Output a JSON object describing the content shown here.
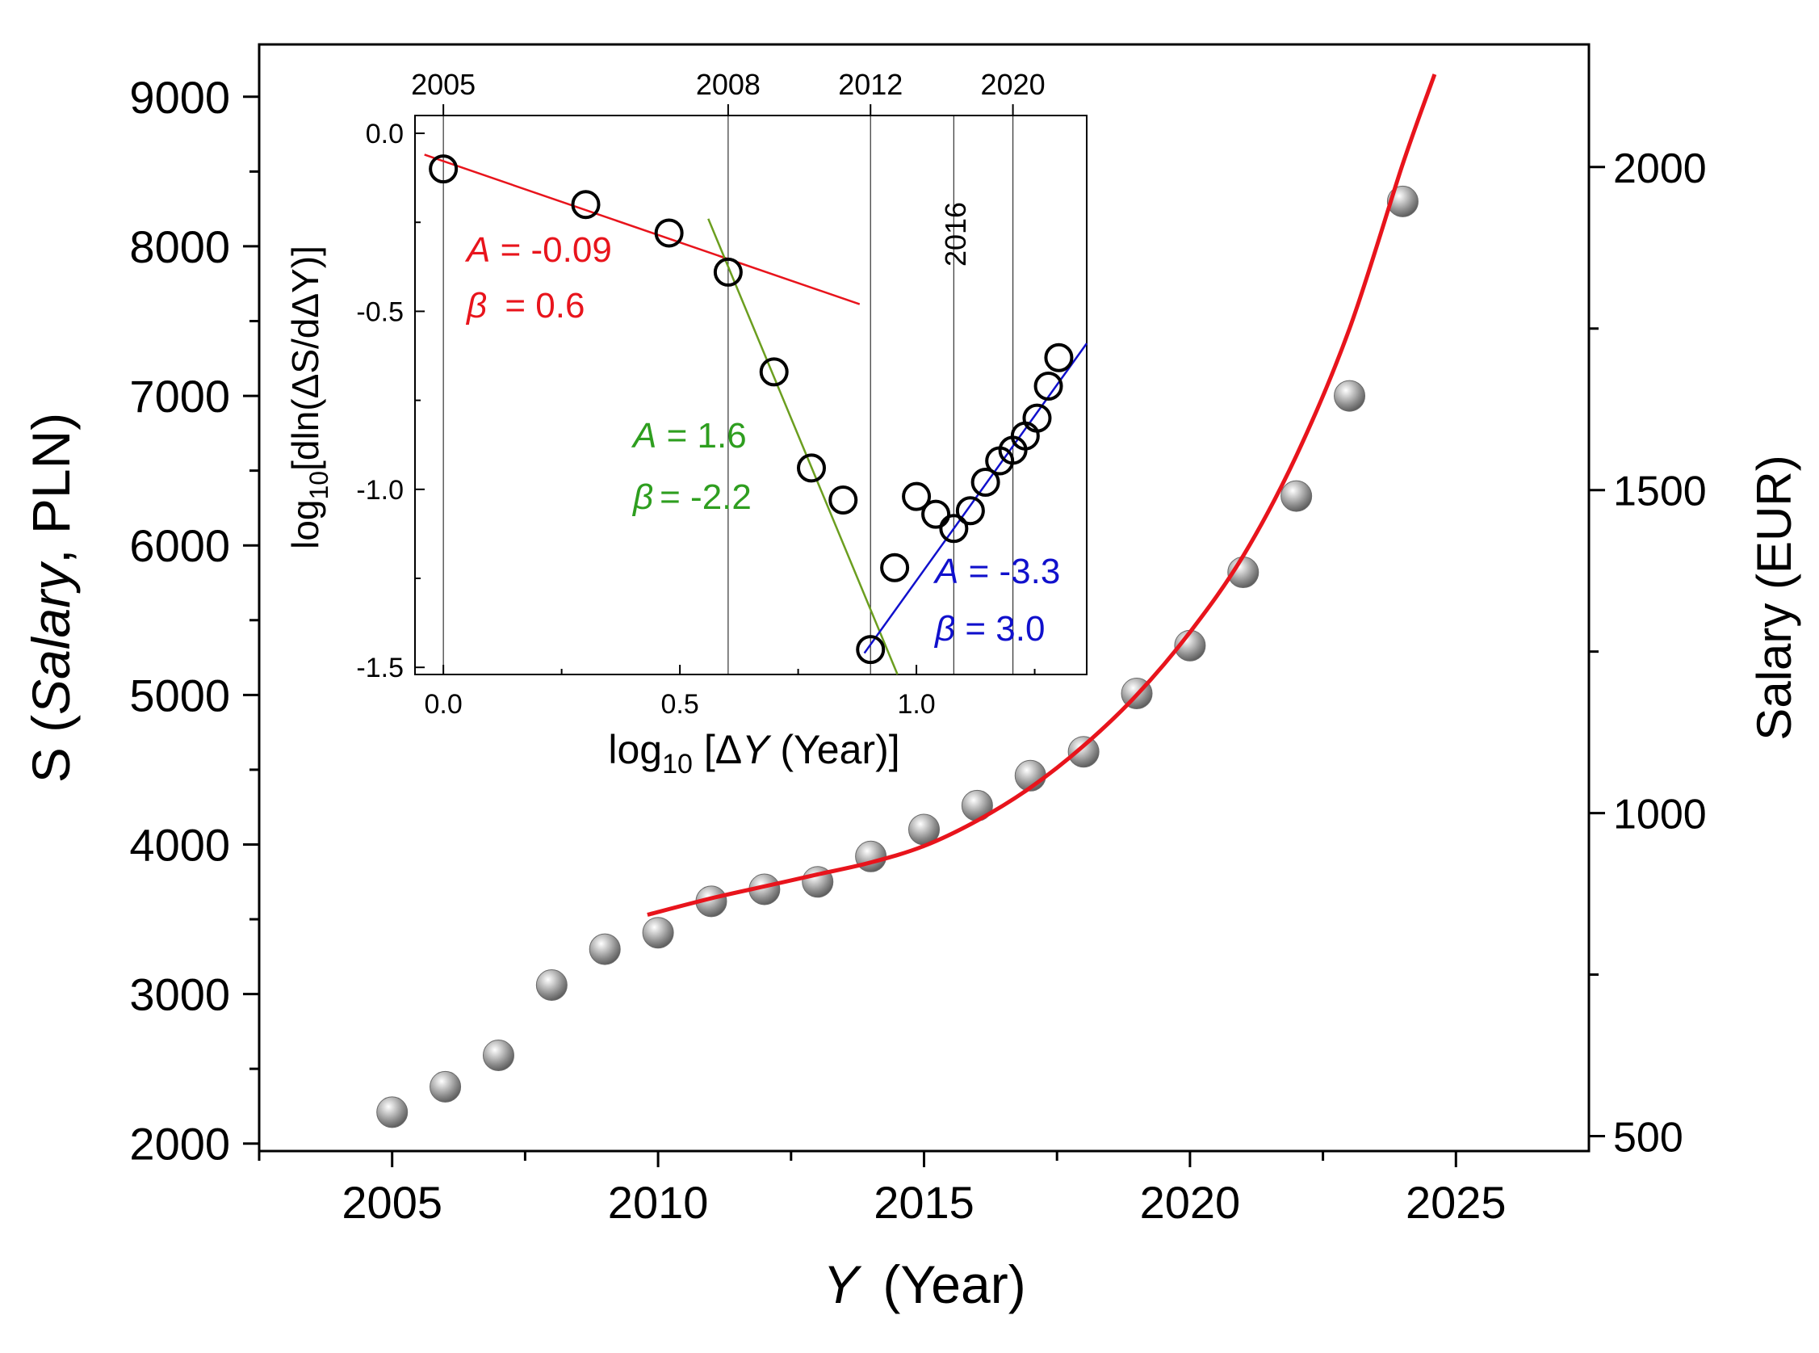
{
  "chart_data": [
    {
      "type": "scatter",
      "title": "",
      "x": [
        2005,
        2006,
        2007,
        2008,
        2009,
        2010,
        2011,
        2012,
        2013,
        2014,
        2015,
        2016,
        2017,
        2018,
        2019,
        2020,
        2021,
        2022,
        2023,
        2024
      ],
      "y": [
        2210,
        2380,
        2590,
        3060,
        3300,
        3410,
        3620,
        3700,
        3750,
        3920,
        4100,
        4260,
        4460,
        4620,
        5010,
        5330,
        5820,
        6330,
        7000,
        8300
      ],
      "fit_curve": {
        "color": "#e8141c",
        "x": [
          2009.8,
          2011,
          2012,
          2013,
          2014,
          2015,
          2016,
          2017,
          2018,
          2019,
          2020,
          2021,
          2022,
          2023,
          2024,
          2024.6
        ],
        "y": [
          3530,
          3640,
          3720,
          3800,
          3880,
          3990,
          4160,
          4380,
          4660,
          5000,
          5420,
          5930,
          6600,
          7450,
          8550,
          9150
        ]
      },
      "xlabel_var": "Y",
      "xlabel_unit": "(Year)",
      "ylabel_prefix": "S (",
      "ylabel_var": "Salary",
      "ylabel_unit": ", PLN)",
      "y2label": "Salary (EUR)",
      "xlim": [
        2002.5,
        2027.5
      ],
      "ylim": [
        1950,
        9350
      ],
      "x_ticks": [
        "2005",
        "2010",
        "2015",
        "2020",
        "2025"
      ],
      "y_ticks": [
        "2000",
        "3000",
        "4000",
        "5000",
        "6000",
        "7000",
        "8000",
        "9000"
      ],
      "y2_ticks": [
        "500",
        "1000",
        "1500",
        "2000"
      ],
      "y2_tick_values_pln": [
        2050,
        4210,
        6370,
        8530
      ]
    },
    {
      "type": "scatter",
      "title": "inset",
      "x": [
        0.0,
        0.301,
        0.477,
        0.602,
        0.699,
        0.778,
        0.845,
        0.903,
        0.954,
        1.0,
        1.041,
        1.079,
        1.114,
        1.146,
        1.176,
        1.204,
        1.23,
        1.255,
        1.279,
        1.301
      ],
      "y": [
        -0.1,
        -0.2,
        -0.28,
        -0.39,
        -0.67,
        -0.94,
        -1.03,
        -1.45,
        -1.22,
        -1.02,
        -1.07,
        -1.11,
        -1.06,
        -0.98,
        -0.92,
        -0.89,
        -0.85,
        -0.8,
        -0.71,
        -0.63
      ],
      "xlabel_prefix": "log",
      "xlabel_sub": "10",
      "xlabel_mid": " [Δ",
      "xlabel_var": "Y",
      "xlabel_unit": "  (Year)]",
      "ylabel_prefix": "log",
      "ylabel_sub": "10",
      "ylabel_rest": "[dln(ΔS/dΔY)]",
      "xlim": [
        -0.06,
        1.36
      ],
      "ylim": [
        -1.52,
        0.05
      ],
      "x_ticks": [
        "0.0",
        "0.5",
        "1.0"
      ],
      "y_ticks": [
        "0.0",
        "-0.5",
        "-1.0",
        "-1.5"
      ],
      "top_ticks": [
        {
          "label": "2005",
          "x": 0.0
        },
        {
          "label": "2008",
          "x": 0.602
        },
        {
          "label": "2012",
          "x": 0.903
        },
        {
          "label": "2020",
          "x": 1.204
        }
      ],
      "vline_2016": {
        "label": "2016",
        "x": 1.079
      },
      "fits": [
        {
          "color": "#e8141c",
          "x": [
            -0.04,
            0.88
          ],
          "y": [
            -0.06,
            -0.48
          ],
          "A_label": "A",
          "A_value": " = -0.09",
          "beta_label": "β",
          "beta_value": " = 0.6"
        },
        {
          "color": "#6b9e1f",
          "x": [
            0.56,
            0.96
          ],
          "y": [
            -0.24,
            -1.52
          ],
          "A_label": "A",
          "A_value": " = 1.6",
          "beta_label": "β",
          "beta_value": "= -2.2"
        },
        {
          "color": "#1010cc",
          "x": [
            0.89,
            1.36
          ],
          "y": [
            -1.46,
            -0.59
          ],
          "A_label": "A",
          "A_value": " = -3.3",
          "beta_label": "β",
          "beta_value": " = 3.0"
        }
      ]
    }
  ]
}
